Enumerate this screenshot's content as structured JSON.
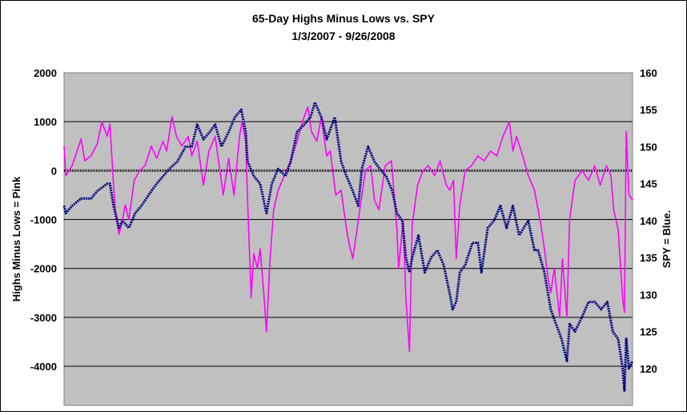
{
  "chart_data": {
    "type": "line",
    "title": "65-Day Highs Minus Lows vs. SPY",
    "subtitle": "1/3/2007  - 9/26/2008",
    "ylabel_left": "Highs Minus Lows = Pink",
    "ylabel_right": "SPY = Blue.",
    "plot_background": "#c0c0c0",
    "grid": true,
    "y_left": {
      "range": [
        -4800,
        2000
      ],
      "ticks": [
        2000,
        1000,
        0,
        -1000,
        -2000,
        -3000,
        -4000
      ],
      "tick_labels": [
        "2000",
        "1000",
        "0",
        "-1000",
        "-2000",
        "-3000",
        "-4000"
      ]
    },
    "y_right": {
      "range": [
        115,
        160
      ],
      "ticks": [
        160,
        155,
        150,
        145,
        140,
        135,
        130,
        125,
        120
      ],
      "tick_labels": [
        "160",
        "155",
        "150",
        "145",
        "140",
        "135",
        "130",
        "125",
        "120"
      ]
    },
    "x": {
      "start": "2007-01-03",
      "end": "2008-09-26"
    },
    "series": [
      {
        "axis": "left",
        "color": "#ff00ff",
        "points": [
          [
            "2007-01-03",
            500
          ],
          [
            "2007-01-05",
            -100
          ],
          [
            "2007-01-12",
            100
          ],
          [
            "2007-01-22",
            650
          ],
          [
            "2007-01-26",
            200
          ],
          [
            "2007-02-02",
            300
          ],
          [
            "2007-02-09",
            550
          ],
          [
            "2007-02-14",
            1000
          ],
          [
            "2007-02-20",
            700
          ],
          [
            "2007-02-23",
            950
          ],
          [
            "2007-02-27",
            -300
          ],
          [
            "2007-03-01",
            -800
          ],
          [
            "2007-03-05",
            -1300
          ],
          [
            "2007-03-08",
            -1100
          ],
          [
            "2007-03-12",
            -700
          ],
          [
            "2007-03-16",
            -1000
          ],
          [
            "2007-03-22",
            -200
          ],
          [
            "2007-03-28",
            0
          ],
          [
            "2007-04-03",
            100
          ],
          [
            "2007-04-10",
            500
          ],
          [
            "2007-04-16",
            250
          ],
          [
            "2007-04-23",
            600
          ],
          [
            "2007-04-27",
            400
          ],
          [
            "2007-05-03",
            1100
          ],
          [
            "2007-05-08",
            700
          ],
          [
            "2007-05-14",
            500
          ],
          [
            "2007-05-21",
            700
          ],
          [
            "2007-05-25",
            300
          ],
          [
            "2007-05-31",
            600
          ],
          [
            "2007-06-07",
            -300
          ],
          [
            "2007-06-13",
            400
          ],
          [
            "2007-06-20",
            700
          ],
          [
            "2007-06-26",
            -100
          ],
          [
            "2007-06-29",
            -500
          ],
          [
            "2007-07-05",
            250
          ],
          [
            "2007-07-11",
            -500
          ],
          [
            "2007-07-17",
            700
          ],
          [
            "2007-07-20",
            1000
          ],
          [
            "2007-07-24",
            600
          ],
          [
            "2007-07-26",
            -600
          ],
          [
            "2007-07-30",
            -2600
          ],
          [
            "2007-08-02",
            -1700
          ],
          [
            "2007-08-06",
            -2000
          ],
          [
            "2007-08-09",
            -1600
          ],
          [
            "2007-08-13",
            -2500
          ],
          [
            "2007-08-16",
            -3300
          ],
          [
            "2007-08-20",
            -1800
          ],
          [
            "2007-08-24",
            -800
          ],
          [
            "2007-08-29",
            -400
          ],
          [
            "2007-09-05",
            -100
          ],
          [
            "2007-09-12",
            200
          ],
          [
            "2007-09-19",
            600
          ],
          [
            "2007-09-25",
            1000
          ],
          [
            "2007-10-01",
            1300
          ],
          [
            "2007-10-05",
            800
          ],
          [
            "2007-10-11",
            600
          ],
          [
            "2007-10-16",
            1100
          ],
          [
            "2007-10-22",
            300
          ],
          [
            "2007-10-26",
            400
          ],
          [
            "2007-11-01",
            -500
          ],
          [
            "2007-11-07",
            -400
          ],
          [
            "2007-11-13",
            -1200
          ],
          [
            "2007-11-16",
            -1500
          ],
          [
            "2007-11-20",
            -1800
          ],
          [
            "2007-11-27",
            -900
          ],
          [
            "2007-12-04",
            0
          ],
          [
            "2007-12-10",
            100
          ],
          [
            "2007-12-14",
            -600
          ],
          [
            "2007-12-19",
            -800
          ],
          [
            "2007-12-26",
            100
          ],
          [
            "2008-01-02",
            200
          ],
          [
            "2008-01-08",
            -1200
          ],
          [
            "2008-01-10",
            -2000
          ],
          [
            "2008-01-15",
            -1000
          ],
          [
            "2008-01-18",
            -2600
          ],
          [
            "2008-01-22",
            -3700
          ],
          [
            "2008-01-25",
            -1100
          ],
          [
            "2008-01-31",
            -300
          ],
          [
            "2008-02-06",
            0
          ],
          [
            "2008-02-12",
            100
          ],
          [
            "2008-02-19",
            -100
          ],
          [
            "2008-02-25",
            200
          ],
          [
            "2008-03-03",
            -300
          ],
          [
            "2008-03-07",
            -400
          ],
          [
            "2008-03-11",
            -200
          ],
          [
            "2008-03-14",
            -1800
          ],
          [
            "2008-03-18",
            -700
          ],
          [
            "2008-03-24",
            0
          ],
          [
            "2008-03-31",
            100
          ],
          [
            "2008-04-07",
            300
          ],
          [
            "2008-04-14",
            200
          ],
          [
            "2008-04-21",
            400
          ],
          [
            "2008-04-28",
            300
          ],
          [
            "2008-05-05",
            700
          ],
          [
            "2008-05-12",
            1000
          ],
          [
            "2008-05-16",
            400
          ],
          [
            "2008-05-20",
            700
          ],
          [
            "2008-05-27",
            300
          ],
          [
            "2008-06-02",
            -100
          ],
          [
            "2008-06-09",
            -400
          ],
          [
            "2008-06-16",
            -1100
          ],
          [
            "2008-06-20",
            -1600
          ],
          [
            "2008-06-24",
            -2200
          ],
          [
            "2008-06-27",
            -2500
          ],
          [
            "2008-07-01",
            -2000
          ],
          [
            "2008-07-07",
            -3000
          ],
          [
            "2008-07-10",
            -1800
          ],
          [
            "2008-07-15",
            -3000
          ],
          [
            "2008-07-18",
            -1000
          ],
          [
            "2008-07-24",
            -200
          ],
          [
            "2008-08-01",
            0
          ],
          [
            "2008-08-08",
            -200
          ],
          [
            "2008-08-15",
            100
          ],
          [
            "2008-08-21",
            -300
          ],
          [
            "2008-08-28",
            100
          ],
          [
            "2008-09-02",
            -100
          ],
          [
            "2008-09-05",
            -800
          ],
          [
            "2008-09-10",
            -1200
          ],
          [
            "2008-09-15",
            -2600
          ],
          [
            "2008-09-17",
            -2900
          ],
          [
            "2008-09-19",
            800
          ],
          [
            "2008-09-22",
            -500
          ],
          [
            "2008-09-26",
            -600
          ]
        ]
      },
      {
        "axis": "right",
        "color": "#000080",
        "points": [
          [
            "2007-01-03",
            142
          ],
          [
            "2007-01-05",
            141
          ],
          [
            "2007-01-12",
            142
          ],
          [
            "2007-01-22",
            143
          ],
          [
            "2007-02-02",
            143
          ],
          [
            "2007-02-09",
            144
          ],
          [
            "2007-02-20",
            145
          ],
          [
            "2007-02-23",
            145
          ],
          [
            "2007-02-27",
            142
          ],
          [
            "2007-03-05",
            139
          ],
          [
            "2007-03-09",
            140
          ],
          [
            "2007-03-16",
            139
          ],
          [
            "2007-03-23",
            141
          ],
          [
            "2007-03-30",
            142
          ],
          [
            "2007-04-10",
            144
          ],
          [
            "2007-04-16",
            145
          ],
          [
            "2007-04-23",
            146
          ],
          [
            "2007-04-30",
            147
          ],
          [
            "2007-05-09",
            148
          ],
          [
            "2007-05-18",
            150
          ],
          [
            "2007-05-25",
            150
          ],
          [
            "2007-05-31",
            153
          ],
          [
            "2007-06-07",
            151
          ],
          [
            "2007-06-14",
            152
          ],
          [
            "2007-06-20",
            153
          ],
          [
            "2007-06-27",
            150
          ],
          [
            "2007-07-05",
            152
          ],
          [
            "2007-07-12",
            154
          ],
          [
            "2007-07-19",
            155
          ],
          [
            "2007-07-24",
            152
          ],
          [
            "2007-07-26",
            148
          ],
          [
            "2007-08-02",
            146
          ],
          [
            "2007-08-09",
            145
          ],
          [
            "2007-08-16",
            141
          ],
          [
            "2007-08-22",
            145
          ],
          [
            "2007-08-29",
            147
          ],
          [
            "2007-09-06",
            146
          ],
          [
            "2007-09-12",
            148
          ],
          [
            "2007-09-19",
            152
          ],
          [
            "2007-09-27",
            153
          ],
          [
            "2007-10-04",
            154
          ],
          [
            "2007-10-09",
            156
          ],
          [
            "2007-10-16",
            154
          ],
          [
            "2007-10-22",
            151
          ],
          [
            "2007-10-31",
            154
          ],
          [
            "2007-11-07",
            148
          ],
          [
            "2007-11-13",
            146
          ],
          [
            "2007-11-20",
            144
          ],
          [
            "2007-11-26",
            142
          ],
          [
            "2007-11-30",
            147
          ],
          [
            "2007-12-07",
            150
          ],
          [
            "2007-12-14",
            148
          ],
          [
            "2007-12-20",
            147
          ],
          [
            "2007-12-27",
            146
          ],
          [
            "2008-01-03",
            144
          ],
          [
            "2008-01-08",
            141
          ],
          [
            "2008-01-14",
            140
          ],
          [
            "2008-01-18",
            135
          ],
          [
            "2008-01-22",
            133
          ],
          [
            "2008-01-25",
            135
          ],
          [
            "2008-02-01",
            138
          ],
          [
            "2008-02-08",
            133
          ],
          [
            "2008-02-15",
            135
          ],
          [
            "2008-02-22",
            136
          ],
          [
            "2008-02-29",
            134
          ],
          [
            "2008-03-07",
            130
          ],
          [
            "2008-03-10",
            128
          ],
          [
            "2008-03-14",
            129
          ],
          [
            "2008-03-18",
            133
          ],
          [
            "2008-03-24",
            134
          ],
          [
            "2008-04-01",
            137
          ],
          [
            "2008-04-07",
            137
          ],
          [
            "2008-04-11",
            133
          ],
          [
            "2008-04-18",
            139
          ],
          [
            "2008-04-25",
            140
          ],
          [
            "2008-05-02",
            142
          ],
          [
            "2008-05-09",
            139
          ],
          [
            "2008-05-16",
            142
          ],
          [
            "2008-05-23",
            138
          ],
          [
            "2008-06-02",
            140
          ],
          [
            "2008-06-09",
            136
          ],
          [
            "2008-06-13",
            136
          ],
          [
            "2008-06-20",
            133
          ],
          [
            "2008-06-27",
            128
          ],
          [
            "2008-07-03",
            126
          ],
          [
            "2008-07-09",
            124
          ],
          [
            "2008-07-15",
            121
          ],
          [
            "2008-07-18",
            126
          ],
          [
            "2008-07-24",
            125
          ],
          [
            "2008-08-01",
            127
          ],
          [
            "2008-08-08",
            129
          ],
          [
            "2008-08-15",
            129
          ],
          [
            "2008-08-22",
            128
          ],
          [
            "2008-08-29",
            129
          ],
          [
            "2008-09-04",
            125
          ],
          [
            "2008-09-10",
            124
          ],
          [
            "2008-09-15",
            120
          ],
          [
            "2008-09-17",
            117
          ],
          [
            "2008-09-19",
            124
          ],
          [
            "2008-09-22",
            120
          ],
          [
            "2008-09-26",
            121
          ]
        ]
      }
    ]
  }
}
